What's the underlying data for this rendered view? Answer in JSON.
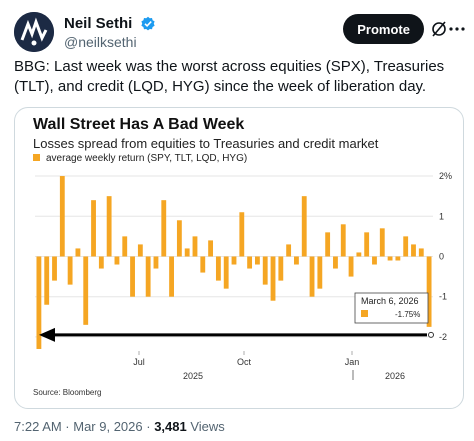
{
  "post": {
    "display_name": "Neil Sethi",
    "handle": "@neilksethi",
    "promote_label": "Promote",
    "text": "BBG: Last week was the worst across equities (SPX), Treasuries (TLT), and credit (LQD, HYG) since the week of liberation day."
  },
  "footer": {
    "time": "7:22 AM · Mar 9, 2026 · ",
    "views_count": "3,481",
    "views_label": " Views"
  },
  "colors": {
    "bar": "#f5a623",
    "brand_blue": "#1d9bf0",
    "button": "#0f1419"
  },
  "icons": [
    "verified-icon",
    "grok-icon",
    "more-icon"
  ],
  "chart_data": {
    "type": "bar",
    "title": "Wall Street Has A Bad Week",
    "subtitle": "Losses spread from equities to Treasuries and credit market",
    "series": [
      {
        "name": "average weekly return (SPY, TLT, LQD, HYG)",
        "values": [
          -2.3,
          -1.2,
          -0.6,
          2.0,
          -0.7,
          0.2,
          -1.7,
          1.4,
          -0.3,
          1.5,
          -0.2,
          0.5,
          -1.0,
          0.3,
          -1.0,
          -0.3,
          1.4,
          -1.0,
          0.9,
          0.2,
          0.5,
          -0.4,
          0.4,
          -0.6,
          -0.8,
          -0.2,
          1.1,
          -0.3,
          -0.2,
          -0.7,
          -1.1,
          -0.6,
          0.3,
          -0.2,
          1.5,
          -1.0,
          -0.8,
          0.6,
          -0.3,
          0.8,
          -0.5,
          0.1,
          0.6,
          -0.2,
          0.7,
          -0.1,
          -0.1,
          0.5,
          0.3,
          0.2,
          -1.75
        ]
      }
    ],
    "ylim": [
      -2.4,
      2.2
    ],
    "yticks": [
      "2%",
      "1",
      "0",
      "-1",
      "-2"
    ],
    "ytick_values": [
      2,
      1,
      0,
      -1,
      -2
    ],
    "xticks": [
      "Jul",
      "Oct",
      "Jan"
    ],
    "xticks_years": [
      "2025",
      "2026"
    ],
    "annotation": {
      "date": "March 6, 2026",
      "value": "-1.75%"
    },
    "source": "Source: Bloomberg"
  }
}
